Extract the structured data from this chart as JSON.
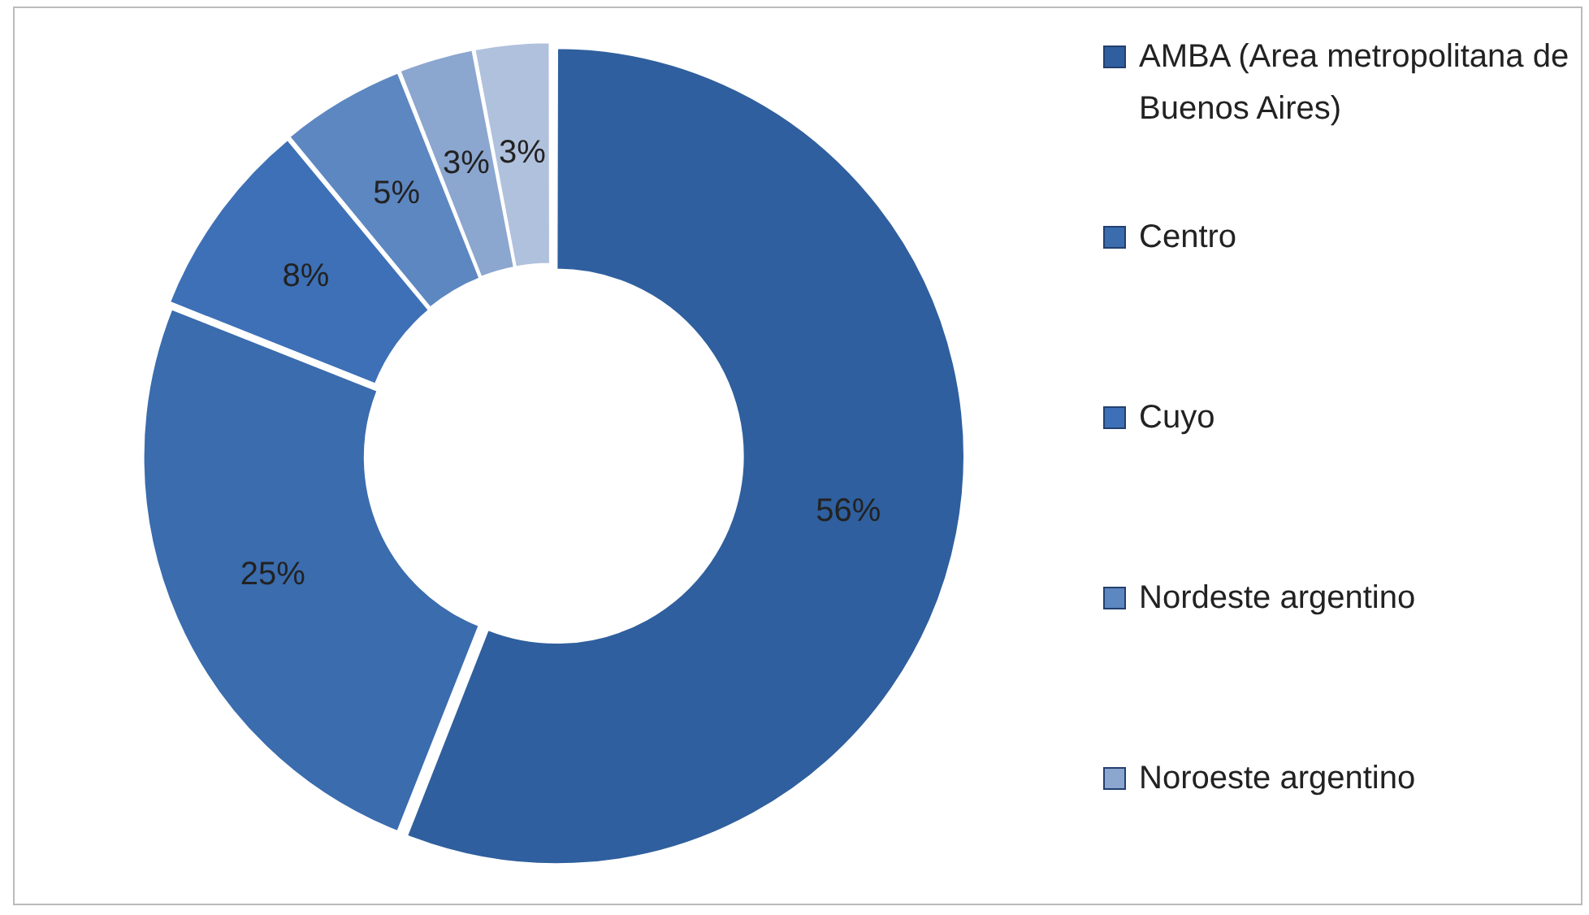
{
  "chart_data": {
    "type": "donut",
    "categories": [
      "AMBA (Area metropolitana de Buenos Aires)",
      "Centro",
      "Cuyo",
      "Nordeste argentino",
      "Noroeste argentino",
      null
    ],
    "values": [
      56,
      25,
      8,
      5,
      3,
      3
    ],
    "value_labels": [
      "56%",
      "25%",
      "8%",
      "5%",
      "3%",
      "3%"
    ],
    "colors": [
      "#2f5f9e",
      "#3a6cae",
      "#3d70b6",
      "#5d87c1",
      "#8ba6cf",
      "#b0c1dd"
    ],
    "legend": "right"
  }
}
